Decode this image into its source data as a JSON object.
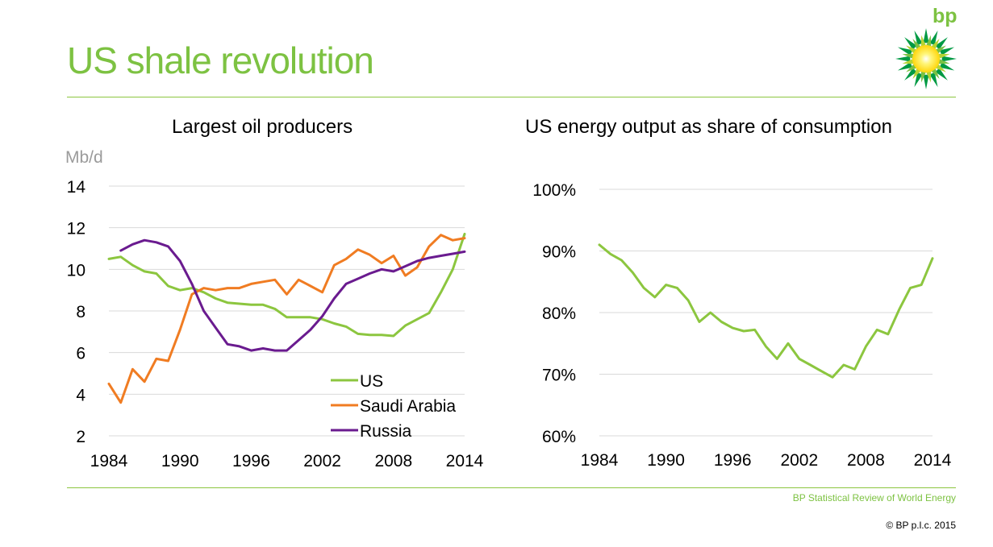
{
  "page": {
    "title": "US shale revolution",
    "logo_text": "bp",
    "source": "BP Statistical Review of World Energy",
    "copyright": "© BP p.l.c. 2015"
  },
  "colors": {
    "accent": "#7dc242",
    "us": "#8cc63f",
    "saudi": "#f07c22",
    "russia": "#6a1b8f",
    "grid": "#d9d9d9"
  },
  "chart_data": [
    {
      "type": "line",
      "title": "Largest oil producers",
      "ylabel": "Mb/d",
      "xlim": [
        1984,
        2014
      ],
      "ylim": [
        2,
        14
      ],
      "yticks": [
        2,
        4,
        6,
        8,
        10,
        12,
        14
      ],
      "xticks": [
        1984,
        1990,
        1996,
        2002,
        2008,
        2014
      ],
      "x": [
        1984,
        1985,
        1986,
        1987,
        1988,
        1989,
        1990,
        1991,
        1992,
        1993,
        1994,
        1995,
        1996,
        1997,
        1998,
        1999,
        2000,
        2001,
        2002,
        2003,
        2004,
        2005,
        2006,
        2007,
        2008,
        2009,
        2010,
        2011,
        2012,
        2013,
        2014
      ],
      "grid": true,
      "legend_position": "bottom-right",
      "series": [
        {
          "name": "US",
          "color_key": "us",
          "values": [
            10.5,
            10.6,
            10.2,
            9.9,
            9.8,
            9.2,
            9.0,
            9.1,
            8.9,
            8.6,
            8.4,
            8.35,
            8.3,
            8.3,
            8.1,
            7.7,
            7.7,
            7.7,
            7.6,
            7.4,
            7.25,
            6.9,
            6.85,
            6.85,
            6.8,
            7.3,
            7.6,
            7.9,
            8.9,
            10.0,
            11.7
          ]
        },
        {
          "name": "Saudi Arabia",
          "color_key": "saudi",
          "values": [
            4.5,
            3.6,
            5.2,
            4.6,
            5.7,
            5.6,
            7.1,
            8.8,
            9.1,
            9.0,
            9.1,
            9.1,
            9.3,
            9.4,
            9.5,
            8.8,
            9.5,
            9.2,
            8.9,
            10.2,
            10.5,
            10.95,
            10.7,
            10.3,
            10.65,
            9.7,
            10.1,
            11.1,
            11.65,
            11.4,
            11.5
          ]
        },
        {
          "name": "Russia",
          "color_key": "russia",
          "values": [
            null,
            10.9,
            11.2,
            11.4,
            11.3,
            11.1,
            10.4,
            9.3,
            8.0,
            7.2,
            6.4,
            6.3,
            6.1,
            6.2,
            6.1,
            6.1,
            6.6,
            7.1,
            7.75,
            8.6,
            9.3,
            9.55,
            9.8,
            10.0,
            9.9,
            10.15,
            10.4,
            10.55,
            10.65,
            10.75,
            10.85
          ]
        }
      ]
    },
    {
      "type": "line",
      "title": "US energy output as share of consumption",
      "xlim": [
        1984,
        2014
      ],
      "ylim": [
        60,
        100
      ],
      "yticks": [
        60,
        70,
        80,
        90,
        100
      ],
      "ytick_labels": [
        "60%",
        "70%",
        "80%",
        "90%",
        "100%"
      ],
      "xticks": [
        1984,
        1990,
        1996,
        2002,
        2008,
        2014
      ],
      "x": [
        1984,
        1985,
        1986,
        1987,
        1988,
        1989,
        1990,
        1991,
        1992,
        1993,
        1994,
        1995,
        1996,
        1997,
        1998,
        1999,
        2000,
        2001,
        2002,
        2003,
        2004,
        2005,
        2006,
        2007,
        2008,
        2009,
        2010,
        2011,
        2012,
        2013,
        2014
      ],
      "grid": true,
      "series": [
        {
          "color_key": "us",
          "values": [
            91,
            89.5,
            88.5,
            86.5,
            84,
            82.5,
            84.5,
            84,
            82,
            78.5,
            80,
            78.5,
            77.5,
            77,
            77.2,
            74.5,
            72.5,
            75,
            72.5,
            71.5,
            70.5,
            69.5,
            71.5,
            70.8,
            74.5,
            77.2,
            76.5,
            80.5,
            84,
            84.5,
            88.8
          ]
        }
      ]
    }
  ]
}
